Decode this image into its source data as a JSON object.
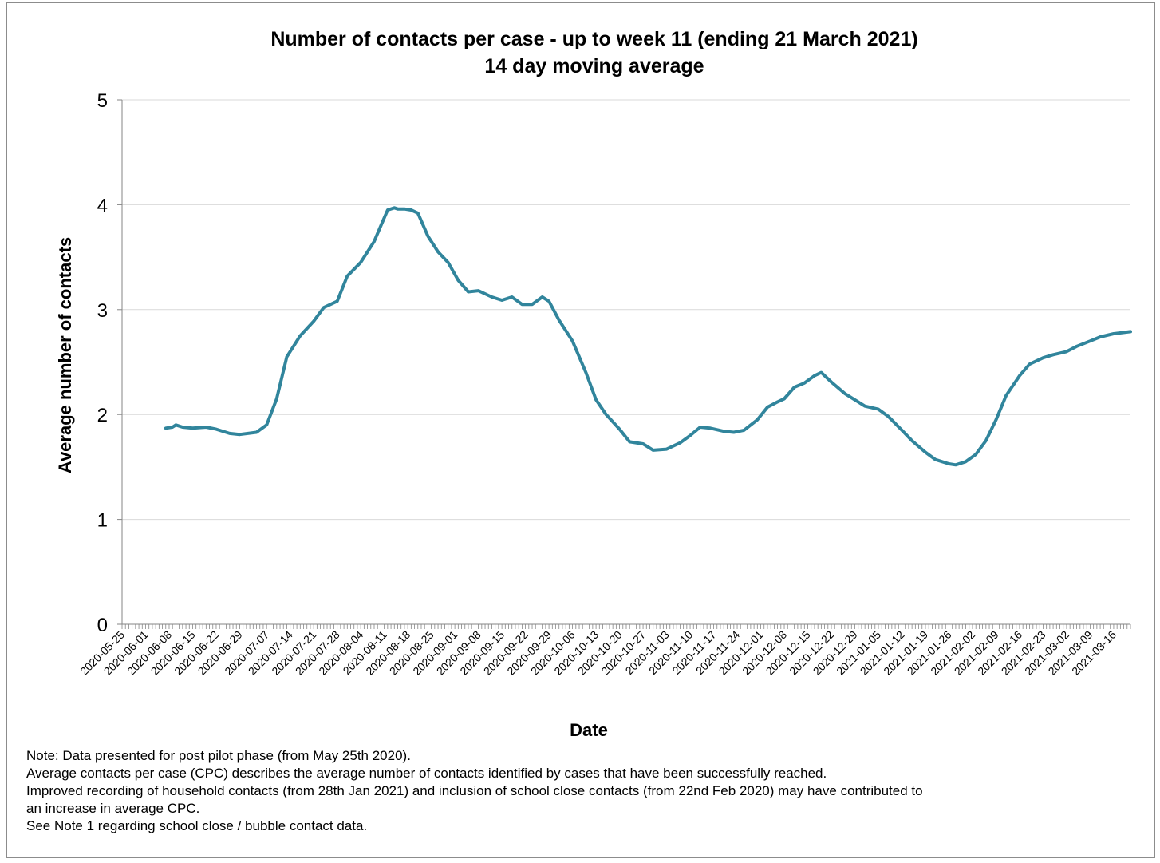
{
  "chart_data": {
    "type": "line",
    "title": "Number of contacts per case - up to week 11 (ending 21 March 2021)",
    "subtitle": "14 day moving average",
    "xlabel": "Date",
    "ylabel": "Average number of contacts",
    "ylim": [
      0,
      5
    ],
    "yticks": [
      0,
      1,
      2,
      3,
      4,
      5
    ],
    "xlim": [
      "2020-05-25",
      "2021-03-21"
    ],
    "x_tick_labels": [
      "2020-05-25",
      "2020-06-01",
      "2020-06-08",
      "2020-06-15",
      "2020-06-22",
      "2020-06-29",
      "2020-07-07",
      "2020-07-14",
      "2020-07-21",
      "2020-07-28",
      "2020-08-04",
      "2020-08-11",
      "2020-08-18",
      "2020-08-25",
      "2020-09-01",
      "2020-09-08",
      "2020-09-15",
      "2020-09-22",
      "2020-09-29",
      "2020-10-06",
      "2020-10-13",
      "2020-10-20",
      "2020-10-27",
      "2020-11-03",
      "2020-11-10",
      "2020-11-17",
      "2020-11-24",
      "2020-12-01",
      "2020-12-08",
      "2020-12-15",
      "2020-12-22",
      "2020-12-29",
      "2021-01-05",
      "2021-01-12",
      "2021-01-19",
      "2021-01-26",
      "2021-02-02",
      "2021-02-09",
      "2021-02-16",
      "2021-02-23",
      "2021-03-02",
      "2021-03-09",
      "2021-03-16"
    ],
    "grid": true,
    "line_color": "#31859c",
    "series": [
      {
        "x": [
          "2020-06-07",
          "2020-06-09",
          "2020-06-10",
          "2020-06-12",
          "2020-06-15",
          "2020-06-19",
          "2020-06-22",
          "2020-06-26",
          "2020-06-29",
          "2020-07-04",
          "2020-07-07",
          "2020-07-10",
          "2020-07-13",
          "2020-07-17",
          "2020-07-21",
          "2020-07-24",
          "2020-07-28",
          "2020-07-31",
          "2020-08-04",
          "2020-08-06",
          "2020-08-08",
          "2020-08-10",
          "2020-08-12",
          "2020-08-14",
          "2020-08-15",
          "2020-08-17",
          "2020-08-19",
          "2020-08-21",
          "2020-08-24",
          "2020-08-27",
          "2020-08-30",
          "2020-09-02",
          "2020-09-05",
          "2020-09-08",
          "2020-09-12",
          "2020-09-15",
          "2020-09-18",
          "2020-09-21",
          "2020-09-24",
          "2020-09-27",
          "2020-09-29",
          "2020-10-02",
          "2020-10-06",
          "2020-10-10",
          "2020-10-13",
          "2020-10-16",
          "2020-10-20",
          "2020-10-23",
          "2020-10-27",
          "2020-10-30",
          "2020-11-03",
          "2020-11-07",
          "2020-11-10",
          "2020-11-13",
          "2020-11-16",
          "2020-11-20",
          "2020-11-23",
          "2020-11-26",
          "2020-11-30",
          "2020-12-03",
          "2020-12-06",
          "2020-12-08",
          "2020-12-11",
          "2020-12-14",
          "2020-12-17",
          "2020-12-19",
          "2020-12-22",
          "2020-12-26",
          "2020-12-29",
          "2021-01-01",
          "2021-01-05",
          "2021-01-08",
          "2021-01-12",
          "2021-01-15",
          "2021-01-19",
          "2021-01-22",
          "2021-01-26",
          "2021-01-28",
          "2021-01-31",
          "2021-02-03",
          "2021-02-06",
          "2021-02-09",
          "2021-02-12",
          "2021-02-16",
          "2021-02-19",
          "2021-02-23",
          "2021-02-26",
          "2021-03-02",
          "2021-03-05",
          "2021-03-09",
          "2021-03-12",
          "2021-03-16",
          "2021-03-21"
        ],
        "y": [
          1.87,
          1.88,
          1.9,
          1.88,
          1.87,
          1.88,
          1.86,
          1.82,
          1.81,
          1.83,
          1.9,
          2.15,
          2.55,
          2.75,
          2.89,
          3.02,
          3.08,
          3.32,
          3.45,
          3.55,
          3.65,
          3.8,
          3.95,
          3.97,
          3.96,
          3.96,
          3.95,
          3.92,
          3.7,
          3.55,
          3.45,
          3.28,
          3.17,
          3.18,
          3.12,
          3.09,
          3.12,
          3.05,
          3.05,
          3.12,
          3.08,
          2.9,
          2.7,
          2.4,
          2.14,
          2.0,
          1.86,
          1.74,
          1.72,
          1.66,
          1.67,
          1.73,
          1.8,
          1.88,
          1.87,
          1.84,
          1.83,
          1.85,
          1.95,
          2.07,
          2.12,
          2.15,
          2.26,
          2.3,
          2.37,
          2.4,
          2.31,
          2.2,
          2.14,
          2.08,
          2.05,
          1.98,
          1.85,
          1.75,
          1.64,
          1.57,
          1.53,
          1.52,
          1.55,
          1.62,
          1.75,
          1.95,
          2.18,
          2.37,
          2.48,
          2.54,
          2.57,
          2.6,
          2.65,
          2.7,
          2.74,
          2.77,
          2.79
        ]
      }
    ]
  },
  "notes": [
    "Note: Data presented  for post pilot phase (from May 25th 2020).",
    "Average contacts per case (CPC) describes the average number of contacts identified by cases that have been successfully reached.",
    "Improved recording of household contacts (from 28th Jan 2021) and inclusion of school close contacts (from 22nd Feb 2020) may have contributed to",
    "an increase in average CPC.",
    "See Note 1 regarding school close / bubble contact data."
  ]
}
